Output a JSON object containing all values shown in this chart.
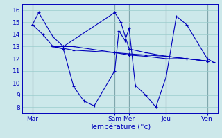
{
  "bg_color": "#cce8ea",
  "grid_color": "#99cccc",
  "line_color": "#0000bb",
  "vline_color": "#445566",
  "xlabel": "Température (°c)",
  "xlabel_fontsize": 7.5,
  "tick_fontsize": 6.5,
  "ylim": [
    7.5,
    16.5
  ],
  "xlim": [
    0,
    9.5
  ],
  "yticks": [
    8,
    9,
    10,
    11,
    12,
    13,
    14,
    15,
    16
  ],
  "day_positions": [
    0.5,
    4.5,
    5.2,
    7.0,
    9.0
  ],
  "day_labels": [
    "Mar",
    "Sam",
    "Mer",
    "Jeu",
    "Ven"
  ],
  "vline_positions": [
    0.5,
    4.5,
    5.2,
    7.0,
    9.0
  ],
  "series": [
    {
      "x": [
        0.5,
        0.8,
        1.5,
        2.0,
        2.5,
        4.5,
        5.2,
        6.0,
        7.0,
        8.0,
        9.0
      ],
      "y": [
        14.8,
        15.8,
        13.8,
        13.0,
        13.0,
        12.5,
        12.4,
        12.3,
        12.2,
        12.0,
        11.8
      ]
    },
    {
      "x": [
        0.5,
        1.0,
        1.5
      ],
      "y": [
        14.8,
        14.0,
        13.0
      ]
    },
    {
      "x": [
        1.5,
        2.0,
        2.5,
        3.0,
        3.5,
        4.5,
        4.7,
        5.0,
        5.2,
        5.5,
        6.0,
        6.5,
        7.0,
        7.5,
        8.0,
        9.0,
        9.3
      ],
      "y": [
        13.0,
        12.8,
        9.7,
        8.5,
        8.1,
        11.0,
        14.3,
        13.5,
        14.5,
        9.8,
        9.0,
        8.0,
        10.5,
        15.5,
        14.8,
        12.0,
        11.7
      ]
    },
    {
      "x": [
        1.5,
        2.0,
        4.5,
        4.8,
        5.2,
        6.0,
        7.0,
        8.0,
        9.0
      ],
      "y": [
        13.0,
        13.0,
        15.8,
        15.0,
        12.8,
        12.5,
        12.2,
        12.0,
        11.8
      ]
    },
    {
      "x": [
        1.5,
        2.5,
        4.5,
        5.2,
        6.0,
        7.0,
        8.0,
        9.0
      ],
      "y": [
        13.0,
        12.7,
        12.5,
        12.3,
        12.2,
        12.0,
        12.0,
        11.8
      ]
    }
  ]
}
